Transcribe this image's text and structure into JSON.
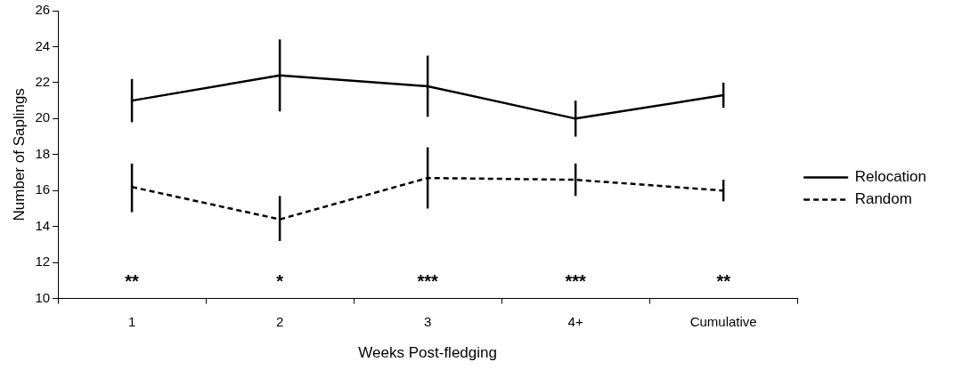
{
  "chart_data": {
    "type": "line",
    "xlabel": "Weeks Post-fledging",
    "ylabel": "Number of Saplings",
    "categories": [
      "1",
      "2",
      "3",
      "4+",
      "Cumulative"
    ],
    "series": [
      {
        "name": "Relocation",
        "color": "#000000",
        "line_style": "solid",
        "values": [
          21.0,
          22.4,
          21.8,
          20.0,
          21.3
        ],
        "errors": [
          [
            19.8,
            22.2
          ],
          [
            20.4,
            24.4
          ],
          [
            20.1,
            23.5
          ],
          [
            19.0,
            21.0
          ],
          [
            20.6,
            22.0
          ]
        ]
      },
      {
        "name": "Random",
        "color": "#000000",
        "line_style": "dashed",
        "values": [
          16.2,
          14.4,
          16.7,
          16.6,
          16.0
        ],
        "errors": [
          [
            14.8,
            17.5
          ],
          [
            13.2,
            15.7
          ],
          [
            15.0,
            18.4
          ],
          [
            15.7,
            17.5
          ],
          [
            15.4,
            16.6
          ]
        ]
      }
    ],
    "ylim": [
      10,
      26
    ],
    "yticks": [
      10,
      12,
      14,
      16,
      18,
      20,
      22,
      24,
      26
    ],
    "grid": false,
    "legend": "right",
    "marker": "none",
    "annotations": [
      "**",
      "*",
      "***",
      "***",
      "**"
    ]
  }
}
